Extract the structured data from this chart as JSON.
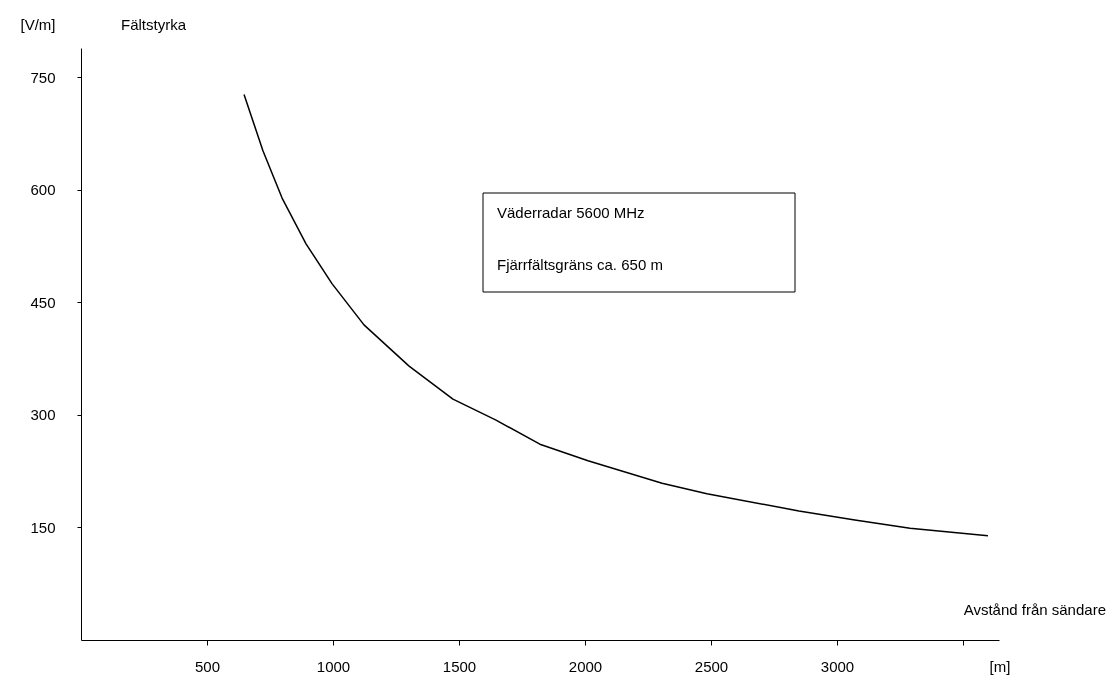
{
  "chart_data": {
    "type": "line",
    "xlabel": "Avstånd från sändare",
    "ylabel": "Fältstyrka",
    "annotations": [
      "[V/m]",
      "[m]",
      "Väderradar 5600 MHz",
      "Fjärrfältsgräns ca. 650 m"
    ],
    "x": [
      647,
      722,
      798,
      893,
      996,
      1123,
      1302,
      1476,
      1647,
      1821,
      2012,
      2306,
      2484,
      2849,
      3071,
      3290,
      3599
    ],
    "series": [
      {
        "color": "#000000",
        "values": [
          727,
          652,
          589,
          528,
          475,
          420,
          365,
          321,
          293,
          261,
          239,
          209,
          195,
          172,
          160,
          149,
          139
        ]
      }
    ],
    "xlim": [
      0,
      3643
    ],
    "xticks": [
      500,
      1000,
      1500,
      2000,
      2500,
      3000,
      {
        "value": 3500,
        "label": null
      }
    ],
    "ylim": [
      0,
      789
    ],
    "yticks": [
      150,
      300,
      450,
      600,
      750
    ],
    "grid": false,
    "legend": false,
    "marker": "none",
    "line_style": "solid"
  }
}
